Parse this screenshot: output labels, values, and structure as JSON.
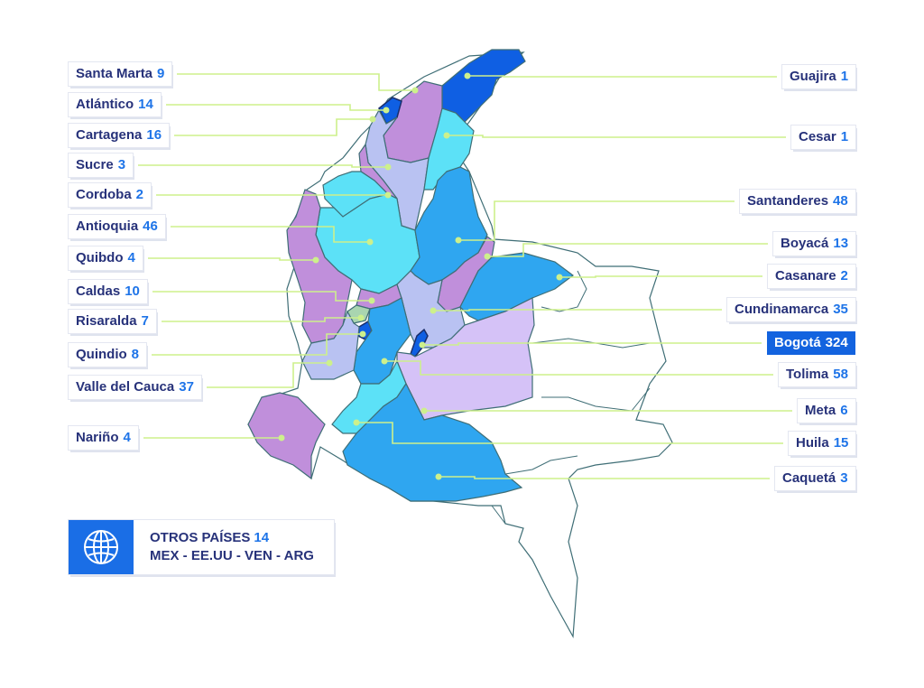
{
  "regions": [
    {
      "id": "santa-marta",
      "name": "Santa Marta",
      "count": "9",
      "side": "left",
      "row": 0
    },
    {
      "id": "atlantico",
      "name": "Atlántico",
      "count": "14",
      "side": "left",
      "row": 1
    },
    {
      "id": "cartagena",
      "name": "Cartagena",
      "count": "16",
      "side": "left",
      "row": 2
    },
    {
      "id": "sucre",
      "name": "Sucre",
      "count": "3",
      "side": "left",
      "row": 3
    },
    {
      "id": "cordoba",
      "name": "Cordoba",
      "count": "2",
      "side": "left",
      "row": 4
    },
    {
      "id": "antioquia",
      "name": "Antioquia",
      "count": "46",
      "side": "left",
      "row": 5
    },
    {
      "id": "quibdo",
      "name": "Quibdo",
      "count": "4",
      "side": "left",
      "row": 6
    },
    {
      "id": "caldas",
      "name": "Caldas",
      "count": "10",
      "side": "left",
      "row": 7
    },
    {
      "id": "risaralda",
      "name": "Risaralda",
      "count": "7",
      "side": "left",
      "row": 8
    },
    {
      "id": "quindio",
      "name": "Quindio",
      "count": "8",
      "side": "left",
      "row": 9
    },
    {
      "id": "valle",
      "name": "Valle del Cauca",
      "count": "37",
      "side": "left",
      "row": 10
    },
    {
      "id": "narino",
      "name": "Nariño",
      "count": "4",
      "side": "left",
      "row": 11
    },
    {
      "id": "guajira",
      "name": "Guajira",
      "count": "1",
      "side": "right",
      "row": 0
    },
    {
      "id": "cesar",
      "name": "Cesar",
      "count": "1",
      "side": "right",
      "row": 1
    },
    {
      "id": "santanderes",
      "name": "Santanderes",
      "count": "48",
      "side": "right",
      "row": 2
    },
    {
      "id": "boyaca",
      "name": "Boyacá",
      "count": "13",
      "side": "right",
      "row": 3
    },
    {
      "id": "casanare",
      "name": "Casanare",
      "count": "2",
      "side": "right",
      "row": 4
    },
    {
      "id": "cundinamarca",
      "name": "Cundinamarca",
      "count": "35",
      "side": "right",
      "row": 5
    },
    {
      "id": "bogota",
      "name": "Bogotá",
      "count": "324",
      "side": "right",
      "row": 6,
      "highlight": true
    },
    {
      "id": "tolima",
      "name": "Tolima",
      "count": "58",
      "side": "right",
      "row": 7
    },
    {
      "id": "meta",
      "name": "Meta",
      "count": "6",
      "side": "right",
      "row": 8
    },
    {
      "id": "huila",
      "name": "Huila",
      "count": "15",
      "side": "right",
      "row": 9
    },
    {
      "id": "caqueta",
      "name": "Caquetá",
      "count": "3",
      "side": "right",
      "row": 10
    }
  ],
  "other": {
    "title": "OTROS PAÍSES",
    "count": "14",
    "countries": "MEX - EE.UU - VEN - ARG"
  },
  "colors": {
    "purple": "#c08fdb",
    "cyan": "#5ce1f7",
    "blue": "#2fa6f0",
    "dark": "#0f5fe3",
    "lavender": "#b9c2f2",
    "lilac": "#d5c2f7",
    "border": "#3f6e76",
    "leader": "#cdf08c"
  }
}
